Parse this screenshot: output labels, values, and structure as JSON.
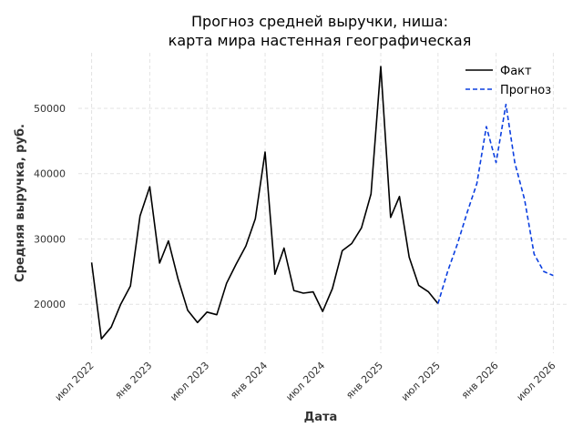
{
  "chart_data": {
    "type": "line",
    "title_lines": [
      "Прогноз средней выручки, ниша:",
      "карта мира настенная географическая"
    ],
    "xlabel": "Дата",
    "ylabel": "Средняя выручка, руб.",
    "xlim": [
      "2022-05-20",
      "2026-08-12"
    ],
    "ylim": [
      12500,
      58500
    ],
    "y_ticks": [
      20000,
      30000,
      40000,
      50000
    ],
    "x_ticks": [
      {
        "date": "2022-07-01",
        "label": "июл 2022"
      },
      {
        "date": "2023-01-01",
        "label": "янв 2023"
      },
      {
        "date": "2023-07-01",
        "label": "июл 2023"
      },
      {
        "date": "2024-01-01",
        "label": "янв 2024"
      },
      {
        "date": "2024-07-01",
        "label": "июл 2024"
      },
      {
        "date": "2025-01-01",
        "label": "янв 2025"
      },
      {
        "date": "2025-07-01",
        "label": "июл 2025"
      },
      {
        "date": "2026-01-01",
        "label": "янв 2026"
      },
      {
        "date": "2026-07-01",
        "label": "июл 2026"
      }
    ],
    "grid": true,
    "legend_position": "top-right",
    "series": [
      {
        "name": "Факт",
        "color": "#000000",
        "style": "solid",
        "points": [
          [
            "2022-07-01",
            26400
          ],
          [
            "2022-08-01",
            14700
          ],
          [
            "2022-09-01",
            16500
          ],
          [
            "2022-10-01",
            20000
          ],
          [
            "2022-11-01",
            22800
          ],
          [
            "2022-12-01",
            33500
          ],
          [
            "2023-01-01",
            38000
          ],
          [
            "2023-02-01",
            26300
          ],
          [
            "2023-03-01",
            29700
          ],
          [
            "2023-04-01",
            23800
          ],
          [
            "2023-05-01",
            19100
          ],
          [
            "2023-06-01",
            17200
          ],
          [
            "2023-07-01",
            18800
          ],
          [
            "2023-08-01",
            18400
          ],
          [
            "2023-09-01",
            23200
          ],
          [
            "2023-10-01",
            26100
          ],
          [
            "2023-11-01",
            28900
          ],
          [
            "2023-12-01",
            33100
          ],
          [
            "2024-01-01",
            43300
          ],
          [
            "2024-02-01",
            24600
          ],
          [
            "2024-03-01",
            28600
          ],
          [
            "2024-04-01",
            22100
          ],
          [
            "2024-05-01",
            21700
          ],
          [
            "2024-06-01",
            21900
          ],
          [
            "2024-07-01",
            18900
          ],
          [
            "2024-08-01",
            22400
          ],
          [
            "2024-09-01",
            28200
          ],
          [
            "2024-10-01",
            29300
          ],
          [
            "2024-11-01",
            31700
          ],
          [
            "2024-12-01",
            36900
          ],
          [
            "2025-01-01",
            56400
          ],
          [
            "2025-02-01",
            33300
          ],
          [
            "2025-03-01",
            36500
          ],
          [
            "2025-04-01",
            27200
          ],
          [
            "2025-05-01",
            22900
          ],
          [
            "2025-06-01",
            21900
          ],
          [
            "2025-07-01",
            20100
          ]
        ]
      },
      {
        "name": "Прогноз",
        "color": "#0b3fe0",
        "style": "dashed",
        "points": [
          [
            "2025-07-01",
            20100
          ],
          [
            "2025-08-01",
            25100
          ],
          [
            "2025-09-01",
            29300
          ],
          [
            "2025-10-01",
            34000
          ],
          [
            "2025-11-01",
            38500
          ],
          [
            "2025-12-01",
            47200
          ],
          [
            "2026-01-01",
            41700
          ],
          [
            "2026-02-01",
            50600
          ],
          [
            "2026-03-01",
            41700
          ],
          [
            "2026-04-01",
            36000
          ],
          [
            "2026-05-01",
            27700
          ],
          [
            "2026-06-01",
            25000
          ],
          [
            "2026-07-01",
            24400
          ]
        ]
      }
    ]
  }
}
